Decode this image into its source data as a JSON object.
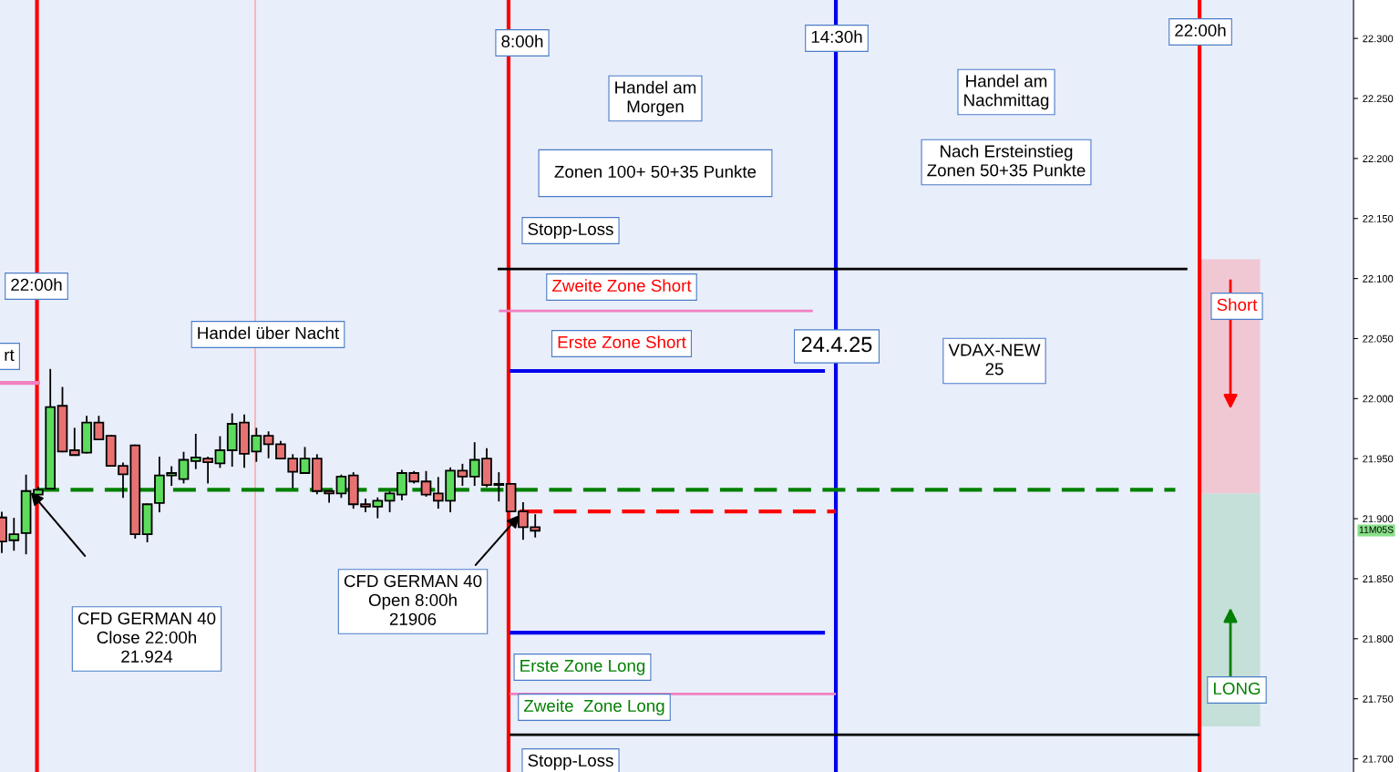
{
  "chart_data": {
    "type": "candlestick",
    "categories": [
      null,
      null,
      null,
      null,
      null,
      null,
      null,
      null,
      null,
      null,
      null,
      null,
      null,
      null,
      null,
      null,
      null,
      null,
      null,
      null,
      null,
      null,
      null,
      null,
      null,
      null,
      null,
      null,
      null,
      null,
      null,
      null,
      null,
      null,
      null,
      null,
      null,
      null,
      null,
      null,
      null,
      null,
      null,
      null,
      null,
      null,
      null,
      null,
      null,
      null,
      null,
      null,
      null,
      null,
      null,
      null,
      null,
      null,
      null,
      null,
      null,
      null,
      null,
      null,
      null,
      null,
      null,
      null,
      null,
      null,
      null,
      null,
      null,
      null,
      null,
      null,
      null,
      null,
      null,
      null,
      null,
      null,
      null,
      null,
      null,
      null,
      null,
      null,
      null,
      null,
      null,
      null,
      null,
      null,
      null,
      null,
      null,
      null,
      null,
      null,
      null,
      null,
      null,
      null,
      null,
      null,
      null,
      null,
      null,
      null,
      null,
      null
    ],
    "ohlc": [
      [
        21901,
        21905,
        21872,
        21881
      ],
      [
        21882,
        21900,
        21874,
        21887
      ],
      [
        21888,
        21936,
        21871,
        21923
      ],
      [
        21920,
        21926,
        21920,
        21924
      ],
      [
        21925,
        22024,
        21925,
        21993
      ],
      [
        21994,
        22009,
        21956,
        21956
      ],
      [
        21957,
        21975,
        21953,
        21953
      ],
      [
        21955,
        21985,
        21955,
        21980
      ],
      [
        21980,
        21985,
        21966,
        21966
      ],
      [
        21969,
        21969,
        21944,
        21944
      ],
      [
        21944,
        21946,
        21918,
        21937
      ],
      [
        21961,
        21961,
        21884,
        21887
      ],
      [
        21887,
        21912,
        21881,
        21912
      ],
      [
        21913,
        21951,
        21906,
        21936
      ],
      [
        21936,
        21943,
        21928,
        21938
      ],
      [
        21933,
        21955,
        21930,
        21949
      ],
      [
        21948,
        21970,
        21942,
        21951
      ],
      [
        21950,
        21951,
        21930,
        21947
      ],
      [
        21946,
        21968,
        21943,
        21957
      ],
      [
        21957,
        21987,
        21944,
        21979
      ],
      [
        21980,
        21986,
        21943,
        21954
      ],
      [
        21956,
        21975,
        21948,
        21969
      ],
      [
        21969,
        21972,
        21951,
        21962
      ],
      [
        21962,
        21964,
        21950,
        21950
      ],
      [
        21950,
        21953,
        21926,
        21939
      ],
      [
        21938,
        21959,
        21938,
        21950
      ],
      [
        21950,
        21953,
        21921,
        21923
      ],
      [
        21923,
        21923,
        21914,
        21921
      ],
      [
        21921,
        21936,
        21918,
        21935
      ],
      [
        21936,
        21938,
        21909,
        21912
      ],
      [
        21912,
        21916,
        21906,
        21910
      ],
      [
        21910,
        21917,
        21901,
        21915
      ],
      [
        21915,
        21922,
        21906,
        21921
      ],
      [
        21920,
        21940,
        21916,
        21938
      ],
      [
        21938,
        21939,
        21930,
        21931
      ],
      [
        21931,
        21939,
        21919,
        21920
      ],
      [
        21921,
        21934,
        21909,
        21915
      ],
      [
        21915,
        21942,
        21906,
        21940
      ],
      [
        21940,
        21945,
        21928,
        21935
      ],
      [
        21935,
        21963,
        21928,
        21949
      ],
      [
        21950,
        21958,
        21927,
        21928
      ],
      [
        21928,
        21938,
        21915,
        21929
      ],
      [
        21929,
        21929,
        21906,
        21906
      ],
      [
        21906,
        21913,
        21883,
        21893
      ],
      [
        21893,
        21903,
        21885,
        21890
      ],
      null,
      null,
      null,
      null,
      null,
      null,
      null,
      null,
      null,
      null,
      null,
      null,
      null,
      null,
      null,
      null,
      null,
      null,
      null,
      null,
      null,
      null,
      null,
      null,
      null,
      null,
      null,
      null,
      null,
      null,
      null,
      null,
      null,
      null,
      null,
      null,
      null,
      null,
      null,
      null,
      null,
      null,
      null,
      null,
      null,
      null,
      null,
      null,
      null,
      null,
      null,
      null,
      null,
      null,
      null,
      null,
      null,
      null,
      null,
      null,
      null,
      null,
      null,
      null,
      null,
      null,
      null
    ],
    "ylim": [
      21689,
      22332
    ],
    "yticks": [
      {
        "value": 21700,
        "label": "21.700"
      },
      {
        "value": 21750,
        "label": "21.750"
      },
      {
        "value": 21800,
        "label": "21.800"
      },
      {
        "value": 21850,
        "label": "21.850"
      },
      {
        "value": 21900,
        "label": "21.900"
      },
      {
        "value": 21950,
        "label": "21.950"
      },
      {
        "value": 22000,
        "label": "22.000"
      },
      {
        "value": 22050,
        "label": "22.050"
      },
      {
        "value": 22100,
        "label": "22.100"
      },
      {
        "value": 22150,
        "label": "22.150"
      },
      {
        "value": 22200,
        "label": "22.200"
      },
      {
        "value": 22250,
        "label": "22.250"
      },
      {
        "value": 22300,
        "label": "22.300"
      }
    ],
    "tick_labels": "y",
    "grid": false,
    "legend": false,
    "ref_lines": [
      {
        "axis": "y",
        "value": 22108,
        "color": "#000000",
        "line_style": "solid"
      },
      {
        "axis": "y",
        "value": 22073,
        "color": "#f080c0",
        "line_style": "solid"
      },
      {
        "axis": "y",
        "value": 22023,
        "color": "#0000ee",
        "line_style": "solid"
      },
      {
        "axis": "y",
        "value": 21924,
        "color": "#008000",
        "line_style": "dashed"
      },
      {
        "axis": "y",
        "value": 21906,
        "color": "#ff0000",
        "line_style": "dashed"
      },
      {
        "axis": "y",
        "value": 21805,
        "color": "#0000ee",
        "line_style": "solid"
      },
      {
        "axis": "y",
        "value": 21754,
        "color": "#f080c0",
        "line_style": "solid"
      },
      {
        "axis": "y",
        "value": 21720,
        "color": "#000000",
        "line_style": "solid"
      }
    ],
    "series": [
      {
        "type": "line",
        "color": "#f080c0",
        "values": [
          22013,
          22013,
          22013,
          22013,
          null,
          null,
          null,
          null,
          null,
          null,
          null,
          null,
          null,
          null,
          null,
          null,
          null,
          null,
          null,
          null,
          null,
          null,
          null,
          null,
          null,
          null,
          null,
          null,
          null,
          null,
          null,
          null,
          null,
          null,
          null,
          null,
          null,
          null,
          null,
          null,
          null,
          null,
          null,
          null,
          null,
          null,
          null,
          null,
          null,
          null,
          null,
          null,
          null,
          null,
          null,
          null,
          null,
          null,
          null,
          null,
          null,
          null,
          null,
          null,
          null,
          null,
          null,
          null,
          null,
          null,
          null,
          null,
          null,
          null,
          null,
          null,
          null,
          null,
          null,
          null,
          null,
          null,
          null,
          null,
          null,
          null,
          null,
          null,
          null,
          null,
          null,
          null,
          null,
          null,
          null,
          null,
          null,
          null,
          null,
          null,
          null,
          null,
          null,
          null,
          null,
          null,
          null,
          null,
          null,
          null,
          null,
          null
        ]
      }
    ],
    "bands": [
      {
        "axis": "y",
        "from": 21921,
        "to": 22116,
        "color": "#f0c8d4"
      },
      {
        "axis": "y",
        "from": 21727,
        "to": 21921,
        "color": "#c4e0d8"
      }
    ],
    "annotations": [
      "22:00h",
      "rt",
      "Handel über Nacht",
      "CFD GERMAN 40\nClose 22:00h\n21.924",
      "CFD GERMAN 40\nOpen 8:00h\n21906",
      "8:00h",
      "Handel am\nMorgen",
      "Zonen 100+ 50+35 Punkte",
      "Stopp-Loss",
      "Zweite Zone Short",
      "Erste Zone Short",
      "24.4.25",
      "14:30h",
      "22:00h",
      "Handel am\nNachmittag",
      "Nach Ersteinstieg\nZonen 50+35 Punkte",
      "VDAX-NEW\n25",
      "Erste Zone Long",
      "Zweite  Zone Long",
      "Stopp-Loss",
      "Short",
      "LONG",
      "11M05S"
    ]
  }
}
